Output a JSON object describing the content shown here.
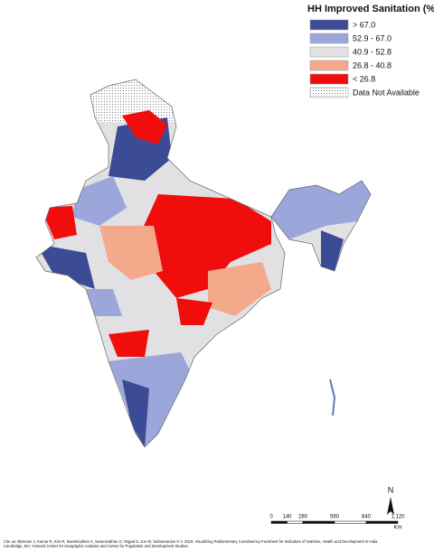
{
  "legend": {
    "title": "HH Improved Sanitation (%)",
    "items": [
      {
        "label": "> 67.0",
        "color": "#3b4b96"
      },
      {
        "label": "52.9 - 67.0",
        "color": "#9ba7da"
      },
      {
        "label": "40.9 - 52.8",
        "color": "#e1e1e3"
      },
      {
        "label": "26.8 - 40.8",
        "color": "#f4a98a"
      },
      {
        "label": "< 26.8",
        "color": "#f20d0d"
      },
      {
        "label": "Data Not Available",
        "color": "dotted"
      }
    ]
  },
  "north_arrow": "N",
  "scale_bar": {
    "ticks": [
      0,
      140,
      280,
      560,
      840,
      {
        "value": 1120,
        "label": "1,120"
      }
    ],
    "unit": "Km"
  },
  "citation": [
    "Cite as: Blossom J, Kumar R, Kim R, Swaminathan A, Swaminathan G, Rajpal S, Joe W, Subramanian S V. 2019. Visualizing Parliamentary Constituency Factsheet for Indicators of Nutrition, Health and Development in India.",
    "Cambridge, MA: Harvard Center for Geographic Analysis and Center for Population and Development Studies."
  ]
}
